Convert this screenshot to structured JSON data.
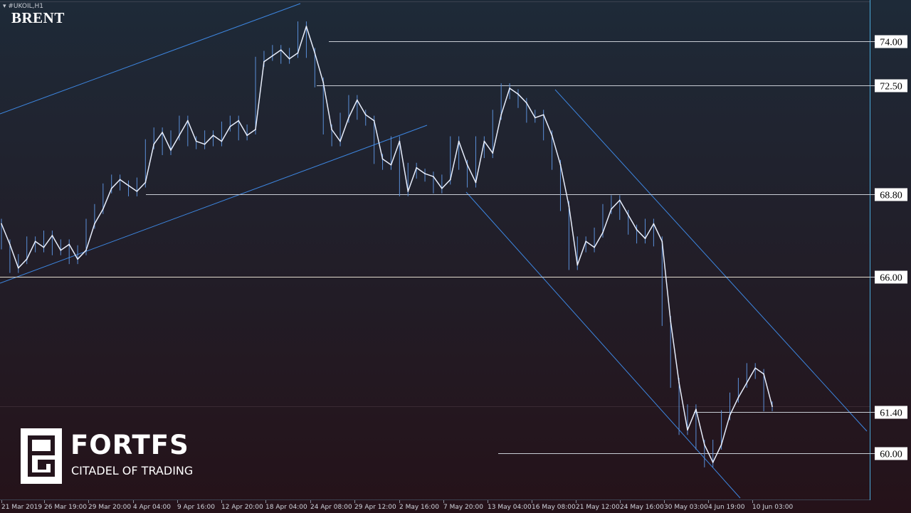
{
  "header": {
    "symbol": "#UKOIL,H1",
    "title": "BRENT"
  },
  "brand": {
    "name": "FORTFS",
    "tagline": "CITADEL OF TRADING"
  },
  "chart_data": {
    "type": "line",
    "title": "BRENT",
    "instrument": "#UKOIL",
    "timeframe": "H1",
    "ylim": [
      58.6,
      75.2
    ],
    "grid": false,
    "x_tick_labels": [
      "21 Mar 2019",
      "26 Mar 19:00",
      "29 Mar 20:00",
      "4 Apr 04:00",
      "9 Apr 16:00",
      "12 Apr 20:00",
      "18 Apr 04:00",
      "24 Apr 08:00",
      "29 Apr 12:00",
      "2 May 16:00",
      "7 May 20:00",
      "13 May 04:00",
      "16 May 08:00",
      "21 May 12:00",
      "24 May 16:00",
      "30 May 03:00",
      "4 Jun 19:00",
      "10 Jun 03:00"
    ],
    "series": [
      {
        "values": [
          67.8,
          67.1,
          66.3,
          66.6,
          67.2,
          67.0,
          67.4,
          66.9,
          67.1,
          66.6,
          66.9,
          67.8,
          68.3,
          69.0,
          69.3,
          69.1,
          68.9,
          69.2,
          70.5,
          70.9,
          70.3,
          70.8,
          71.3,
          70.6,
          70.5,
          70.8,
          70.6,
          71.1,
          71.3,
          70.8,
          71.0,
          73.3,
          73.5,
          73.7,
          73.4,
          73.6,
          74.5,
          73.6,
          72.6,
          71.0,
          70.6,
          71.4,
          72.0,
          71.5,
          71.3,
          70.0,
          69.8,
          70.6,
          68.9,
          69.7,
          69.5,
          69.4,
          69.0,
          69.3,
          70.6,
          69.8,
          69.2,
          70.6,
          70.2,
          71.5,
          72.4,
          72.2,
          71.9,
          71.4,
          71.5,
          70.8,
          69.8,
          68.4,
          66.4,
          67.2,
          67.0,
          67.5,
          68.3,
          68.6,
          68.1,
          67.6,
          67.3,
          67.8,
          67.2,
          64.5,
          62.4,
          60.8,
          61.5,
          60.3,
          59.7,
          60.3,
          61.3,
          61.9,
          62.4,
          62.9,
          62.7,
          61.6
        ],
        "color": "#e8eefc"
      }
    ],
    "horizontal_levels": [
      {
        "label": "74.00",
        "value": 74.0
      },
      {
        "label": "72.50",
        "value": 72.5
      },
      {
        "label": "68.80",
        "value": 68.8
      },
      {
        "label": "66.00",
        "value": 66.0
      },
      {
        "label": "61.40",
        "value": 61.4
      },
      {
        "label": "60.00",
        "value": 60.0
      }
    ],
    "colors": {
      "background_top": "#1e2a38",
      "background_bottom": "#251219",
      "price": "#e8eefc",
      "price_wick": "#5a8fd8",
      "channel": "#3d86e0",
      "level": "#c8ccd4",
      "label_bg": "#ffffff",
      "label_text": "#000000"
    }
  }
}
